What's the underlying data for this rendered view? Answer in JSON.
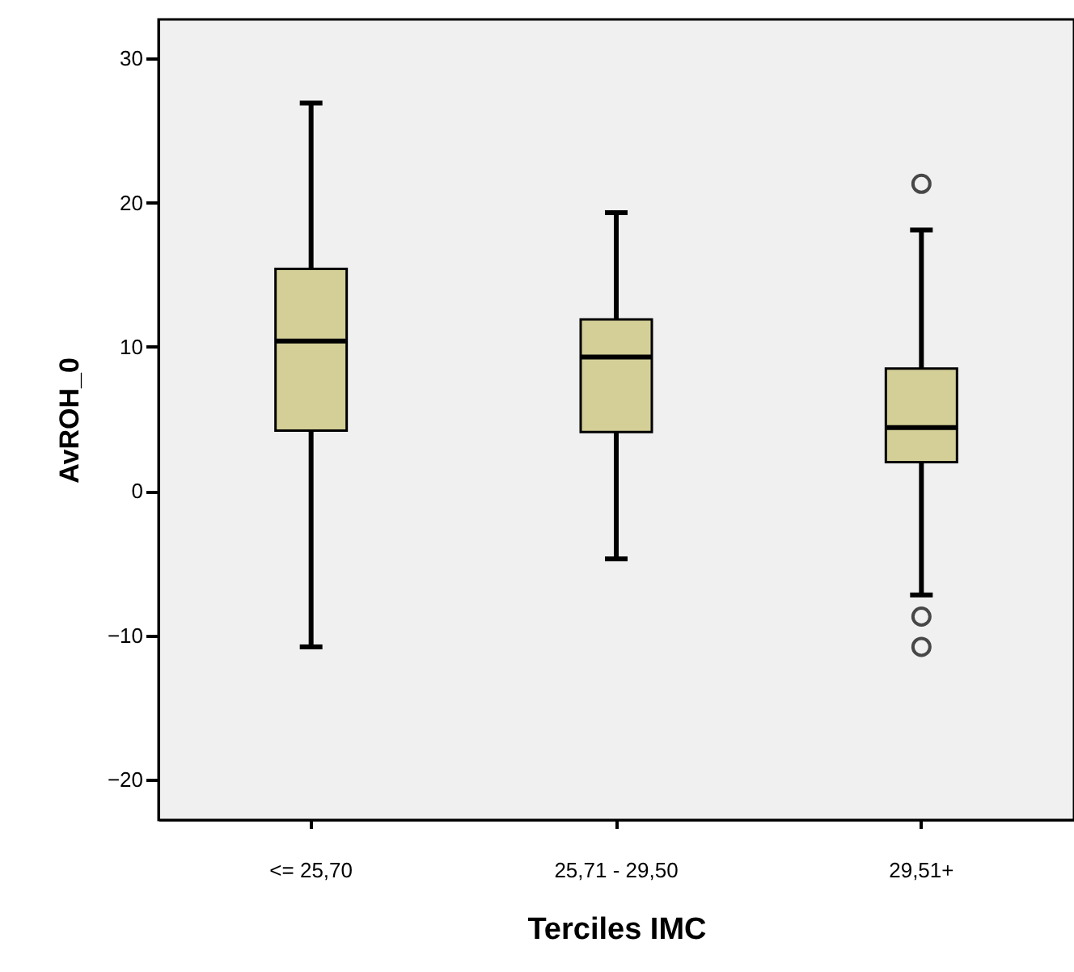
{
  "chart_data": {
    "type": "box",
    "xlabel": "Terciles IMC",
    "ylabel": "AvROH_0",
    "categories": [
      "<= 25,70",
      "25,71 - 29,50",
      "29,51+"
    ],
    "ylim": [
      -22.8,
      32.7
    ],
    "yticks": [
      -20,
      -10,
      0,
      10,
      20,
      30
    ],
    "series": [
      {
        "color": "#d3cf97",
        "boxes": [
          {
            "low": -10.8,
            "q1": 4.2,
            "median": 10.4,
            "q3": 15.4,
            "high": 26.9
          },
          {
            "low": -4.7,
            "q1": 4.1,
            "median": 9.3,
            "q3": 11.9,
            "high": 19.3
          },
          {
            "low": -7.2,
            "q1": 2.0,
            "median": 4.4,
            "q3": 8.5,
            "high": 18.1,
            "outliers": [
              21.3,
              -8.7,
              -10.8
            ]
          }
        ]
      }
    ]
  }
}
